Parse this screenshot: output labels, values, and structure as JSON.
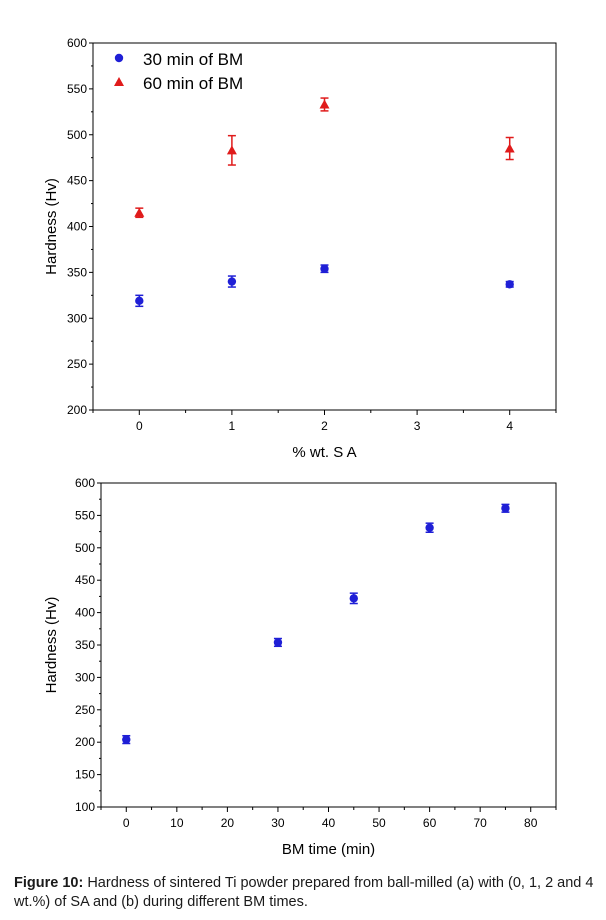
{
  "chart_data": [
    {
      "type": "scatter",
      "panel": "a",
      "xlabel": "% wt. S A",
      "ylabel": "Hardness (Hv)",
      "xlim": [
        -0.5,
        4.5
      ],
      "ylim": [
        200,
        600
      ],
      "xticks": [
        0,
        1,
        2,
        3,
        4
      ],
      "yticks": [
        200,
        250,
        300,
        350,
        400,
        450,
        500,
        550,
        600
      ],
      "legend_position": "top-left",
      "series": [
        {
          "name": "30 min of BM",
          "marker": "circle",
          "color": "#1f1fd6",
          "x": [
            0,
            1,
            2,
            4
          ],
          "y": [
            319,
            340,
            354,
            337
          ],
          "err": [
            6,
            6,
            4,
            3
          ]
        },
        {
          "name": "60 min of BM",
          "marker": "triangle",
          "color": "#e01b1b",
          "x": [
            0,
            1,
            2,
            4
          ],
          "y": [
            415,
            483,
            533,
            485
          ],
          "err": [
            5,
            16,
            7,
            12
          ]
        }
      ]
    },
    {
      "type": "scatter",
      "panel": "b",
      "xlabel": "BM time (min)",
      "ylabel": "Hardness (Hv)",
      "xlim": [
        -5,
        85
      ],
      "ylim": [
        100,
        600
      ],
      "xticks": [
        0,
        10,
        20,
        30,
        40,
        50,
        60,
        70,
        80
      ],
      "yticks": [
        100,
        150,
        200,
        250,
        300,
        350,
        400,
        450,
        500,
        550,
        600
      ],
      "series": [
        {
          "marker": "circle",
          "color": "#1f1fd6",
          "x": [
            0,
            30,
            45,
            60,
            75
          ],
          "y": [
            204,
            354,
            422,
            531,
            561
          ],
          "err": [
            6,
            6,
            8,
            7,
            6
          ]
        }
      ]
    }
  ],
  "caption": {
    "label": "Figure 10:",
    "text": " Hardness of sintered Ti powder prepared from ball-milled (a) with (0, 1, 2 and 4 wt.%) of SA and (b) during different BM times."
  }
}
